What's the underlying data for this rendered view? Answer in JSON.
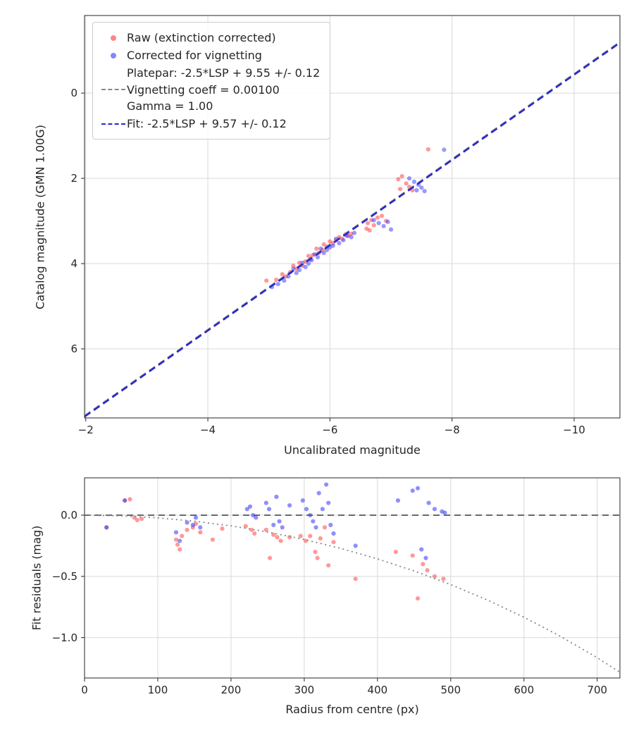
{
  "figure": {
    "background": "#ffffff",
    "text_color": "#262626",
    "grid_color": "#d9d9d9"
  },
  "chart_data": [
    {
      "type": "scatter",
      "title": "",
      "xlabel": "Uncalibrated magnitude",
      "ylabel": "Catalog magnitude (GMN 1.00G)",
      "xlim": [
        -1.98,
        -10.75
      ],
      "ylim": [
        7.62,
        -1.82
      ],
      "x_inverted": true,
      "y_inverted": true,
      "grid": true,
      "xticks": {
        "values": [
          -2,
          -4,
          -6,
          -8,
          -10
        ],
        "labels": [
          "−2",
          "−4",
          "−6",
          "−8",
          "−10"
        ]
      },
      "yticks": {
        "values": [
          0,
          2,
          4,
          6
        ],
        "labels": [
          "0",
          "2",
          "4",
          "6"
        ]
      },
      "series": [
        {
          "name": "Raw (extinction corrected)",
          "type": "scatter",
          "color": "#ff3333",
          "alpha": 0.5,
          "points": [
            [
              -7.61,
              1.32
            ],
            [
              -7.12,
              2.02
            ],
            [
              -7.18,
              1.95
            ],
            [
              -7.25,
              2.12
            ],
            [
              -7.3,
              2.2
            ],
            [
              -7.35,
              2.28
            ],
            [
              -7.15,
              2.25
            ],
            [
              -6.62,
              3.05
            ],
            [
              -6.68,
              2.98
            ],
            [
              -6.72,
              3.1
            ],
            [
              -6.78,
              2.92
            ],
            [
              -6.85,
              2.88
            ],
            [
              -6.92,
              3.0
            ],
            [
              -6.6,
              3.18
            ],
            [
              -6.65,
              3.22
            ],
            [
              -6.35,
              3.3
            ],
            [
              -6.3,
              3.35
            ],
            [
              -6.25,
              3.32
            ],
            [
              -6.2,
              3.42
            ],
            [
              -6.15,
              3.38
            ],
            [
              -6.1,
              3.45
            ],
            [
              -6.05,
              3.52
            ],
            [
              -6.0,
              3.48
            ],
            [
              -5.95,
              3.6
            ],
            [
              -5.9,
              3.55
            ],
            [
              -5.88,
              3.68
            ],
            [
              -5.82,
              3.75
            ],
            [
              -5.78,
              3.65
            ],
            [
              -5.72,
              3.8
            ],
            [
              -5.68,
              3.9
            ],
            [
              -5.65,
              3.82
            ],
            [
              -5.6,
              3.95
            ],
            [
              -5.55,
              4.05
            ],
            [
              -5.5,
              3.98
            ],
            [
              -5.45,
              4.12
            ],
            [
              -5.4,
              4.05
            ],
            [
              -5.35,
              4.2
            ],
            [
              -5.28,
              4.3
            ],
            [
              -5.22,
              4.25
            ],
            [
              -5.12,
              4.38
            ],
            [
              -4.96,
              4.4
            ]
          ]
        },
        {
          "name": "Corrected for vignetting",
          "type": "scatter",
          "color": "#3333ff",
          "alpha": 0.5,
          "points": [
            [
              -7.87,
              1.33
            ],
            [
              -7.3,
              2.0
            ],
            [
              -7.38,
              2.08
            ],
            [
              -7.45,
              2.15
            ],
            [
              -7.5,
              2.22
            ],
            [
              -7.55,
              2.3
            ],
            [
              -7.42,
              2.28
            ],
            [
              -6.72,
              2.98
            ],
            [
              -6.8,
              3.05
            ],
            [
              -6.88,
              3.12
            ],
            [
              -6.95,
              3.02
            ],
            [
              -7.0,
              3.2
            ],
            [
              -6.4,
              3.28
            ],
            [
              -6.35,
              3.38
            ],
            [
              -6.28,
              3.35
            ],
            [
              -6.22,
              3.45
            ],
            [
              -6.15,
              3.52
            ],
            [
              -6.1,
              3.42
            ],
            [
              -6.05,
              3.58
            ],
            [
              -6.0,
              3.62
            ],
            [
              -5.95,
              3.68
            ],
            [
              -5.9,
              3.75
            ],
            [
              -5.85,
              3.65
            ],
            [
              -5.8,
              3.85
            ],
            [
              -5.75,
              3.78
            ],
            [
              -5.7,
              3.92
            ],
            [
              -5.65,
              4.0
            ],
            [
              -5.6,
              4.08
            ],
            [
              -5.55,
              3.98
            ],
            [
              -5.5,
              4.15
            ],
            [
              -5.45,
              4.22
            ],
            [
              -5.4,
              4.12
            ],
            [
              -5.32,
              4.3
            ],
            [
              -5.25,
              4.4
            ],
            [
              -5.15,
              4.48
            ],
            [
              -5.05,
              4.55
            ]
          ]
        },
        {
          "name": "Platepar: -2.5*LSP + 9.55 +/- 0.12",
          "type": "line",
          "style": "dashed",
          "color": "#888888",
          "width": 2.2,
          "slope": 1,
          "intercept": 9.55
        },
        {
          "name": "Fit: -2.5*LSP + 9.57 +/- 0.12",
          "type": "line",
          "style": "dashed",
          "color": "#2929cc",
          "width": 2.6,
          "slope": 1,
          "intercept": 9.57
        }
      ],
      "legend": {
        "position": "upper left",
        "entries": [
          {
            "handle": "dot",
            "color": "#f06a6a",
            "label": "Raw (extinction corrected)"
          },
          {
            "handle": "dot",
            "color": "#6a6af0",
            "label": "Corrected for vignetting"
          },
          {
            "handle": "dashed-line",
            "color": "#888888",
            "label_lines": [
              "Platepar: -2.5*LSP + 9.55 +/- 0.12",
              "Vignetting coeff = 0.00100",
              "Gamma = 1.00"
            ]
          },
          {
            "handle": "dashed-line",
            "color": "#2929cc",
            "label": "Fit: -2.5*LSP + 9.57 +/- 0.12"
          }
        ]
      }
    },
    {
      "type": "scatter",
      "title": "",
      "xlabel": "Radius from centre (px)",
      "ylabel": "Fit residuals (mag)",
      "xlim": [
        0,
        731
      ],
      "ylim": [
        -1.33,
        0.305
      ],
      "grid": true,
      "xticks": {
        "values": [
          0,
          100,
          200,
          300,
          400,
          500,
          600,
          700
        ],
        "labels": [
          "0",
          "100",
          "200",
          "300",
          "400",
          "500",
          "600",
          "700"
        ]
      },
      "yticks": {
        "values": [
          0.0,
          -0.5,
          -1.0
        ],
        "labels": [
          "0.0",
          "−0.5",
          "−1.0"
        ]
      },
      "series": [
        {
          "name": "raw residuals",
          "type": "scatter",
          "color": "#ff3333",
          "alpha": 0.5,
          "points": [
            [
              30,
              -0.1
            ],
            [
              55,
              0.12
            ],
            [
              62,
              0.13
            ],
            [
              68,
              -0.02
            ],
            [
              72,
              -0.04
            ],
            [
              78,
              -0.03
            ],
            [
              125,
              -0.2
            ],
            [
              127,
              -0.24
            ],
            [
              130,
              -0.28
            ],
            [
              133,
              -0.17
            ],
            [
              140,
              -0.12
            ],
            [
              148,
              -0.1
            ],
            [
              152,
              -0.07
            ],
            [
              158,
              -0.14
            ],
            [
              175,
              -0.2
            ],
            [
              188,
              -0.11
            ],
            [
              220,
              -0.09
            ],
            [
              228,
              -0.12
            ],
            [
              232,
              -0.15
            ],
            [
              248,
              -0.12
            ],
            [
              253,
              -0.35
            ],
            [
              258,
              -0.16
            ],
            [
              263,
              -0.18
            ],
            [
              268,
              -0.21
            ],
            [
              280,
              -0.18
            ],
            [
              295,
              -0.17
            ],
            [
              302,
              -0.21
            ],
            [
              308,
              -0.17
            ],
            [
              315,
              -0.3
            ],
            [
              318,
              -0.35
            ],
            [
              322,
              -0.19
            ],
            [
              328,
              -0.1
            ],
            [
              333,
              -0.41
            ],
            [
              340,
              -0.22
            ],
            [
              370,
              -0.52
            ],
            [
              425,
              -0.3
            ],
            [
              448,
              -0.33
            ],
            [
              455,
              -0.68
            ],
            [
              462,
              -0.4
            ],
            [
              468,
              -0.45
            ],
            [
              478,
              -0.5
            ],
            [
              490,
              -0.52
            ]
          ]
        },
        {
          "name": "corrected residuals",
          "type": "scatter",
          "color": "#3333ff",
          "alpha": 0.55,
          "points": [
            [
              30,
              -0.1
            ],
            [
              55,
              0.12
            ],
            [
              125,
              -0.14
            ],
            [
              130,
              -0.21
            ],
            [
              140,
              -0.06
            ],
            [
              148,
              -0.08
            ],
            [
              152,
              -0.02
            ],
            [
              158,
              -0.1
            ],
            [
              222,
              0.05
            ],
            [
              226,
              0.07
            ],
            [
              230,
              0.0
            ],
            [
              234,
              -0.02
            ],
            [
              248,
              0.1
            ],
            [
              252,
              0.05
            ],
            [
              258,
              -0.08
            ],
            [
              262,
              0.15
            ],
            [
              266,
              -0.05
            ],
            [
              270,
              -0.1
            ],
            [
              280,
              0.08
            ],
            [
              298,
              0.12
            ],
            [
              303,
              0.05
            ],
            [
              308,
              0.0
            ],
            [
              312,
              -0.05
            ],
            [
              316,
              -0.1
            ],
            [
              320,
              0.18
            ],
            [
              325,
              0.05
            ],
            [
              330,
              0.25
            ],
            [
              333,
              0.1
            ],
            [
              336,
              -0.08
            ],
            [
              340,
              -0.15
            ],
            [
              370,
              -0.25
            ],
            [
              428,
              0.12
            ],
            [
              448,
              0.2
            ],
            [
              455,
              0.22
            ],
            [
              460,
              -0.28
            ],
            [
              466,
              -0.35
            ],
            [
              470,
              0.1
            ],
            [
              478,
              0.05
            ],
            [
              488,
              0.03
            ],
            [
              492,
              0.02
            ]
          ]
        },
        {
          "name": "zero line",
          "type": "hline",
          "style": "dashed",
          "color": "#555555",
          "width": 1.8,
          "y": 0
        },
        {
          "name": "vignetting model",
          "type": "curve",
          "style": "dotted",
          "color": "#888888",
          "width": 1.8,
          "points": [
            [
              0,
              0
            ],
            [
              50,
              -0.0054
            ],
            [
              100,
              -0.0218
            ],
            [
              150,
              -0.049
            ],
            [
              200,
              -0.0874
            ],
            [
              250,
              -0.1372
            ],
            [
              300,
              -0.1985
            ],
            [
              350,
              -0.2716
            ],
            [
              400,
              -0.3571
            ],
            [
              450,
              -0.4554
            ],
            [
              500,
              -0.5672
            ],
            [
              550,
              -0.6931
            ],
            [
              600,
              -0.8338
            ],
            [
              650,
              -0.9904
            ],
            [
              700,
              -1.1643
            ],
            [
              731,
              -1.283
            ]
          ]
        }
      ]
    }
  ]
}
